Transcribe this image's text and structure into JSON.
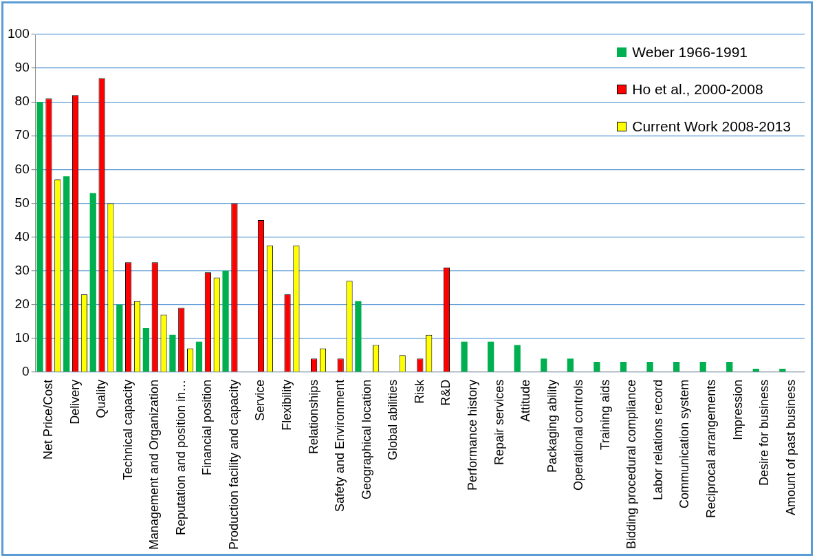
{
  "chart_data": {
    "type": "bar",
    "categories": [
      "Net Price/Cost",
      "Delivery",
      "Quality",
      "Technical capacity",
      "Management and Organization",
      "Reputation and position in…",
      "Financial position",
      "Production facility and capacity",
      "Service",
      "Flexibility",
      "Relationships",
      "Safety and Environment",
      "Geographical location",
      "Global abilities",
      "Risk",
      "R&D",
      "Performance history",
      "Repair services",
      "Attitude",
      "Packaging ability",
      "Operational controls",
      "Training aids",
      "Bidding procedural compliance",
      "Labor relations record",
      "Communication system",
      "Reciprocal arrangements",
      "Impression",
      "Desire for business",
      "Amount of past business"
    ],
    "series": [
      {
        "name": "Weber 1966-1991",
        "color": "#00b050",
        "values": [
          80,
          58,
          53,
          20,
          13,
          11,
          9,
          30,
          null,
          null,
          null,
          null,
          21,
          null,
          null,
          null,
          9,
          9,
          8,
          4,
          4,
          3,
          3,
          3,
          3,
          3,
          3,
          1,
          1
        ]
      },
      {
        "name": "Ho et al., 2000-2008",
        "color": "#ff0000",
        "values": [
          81,
          82,
          87,
          32.5,
          32.5,
          19,
          29.5,
          50,
          45,
          23,
          4,
          4,
          null,
          null,
          4,
          31,
          null,
          null,
          null,
          null,
          null,
          null,
          null,
          null,
          null,
          null,
          null,
          null,
          null
        ]
      },
      {
        "name": "Current Work 2008-2013",
        "color": "#ffff00",
        "values": [
          57,
          23,
          50,
          21,
          17,
          7,
          28,
          null,
          37.5,
          37.5,
          7,
          27,
          8,
          5,
          11,
          null,
          null,
          null,
          null,
          null,
          null,
          null,
          null,
          null,
          null,
          null,
          null,
          null,
          null
        ]
      }
    ],
    "ylim": [
      0,
      100
    ],
    "yticks": [
      0,
      10,
      20,
      30,
      40,
      50,
      60,
      70,
      80,
      90,
      100
    ],
    "grid": "y",
    "legend": "top right"
  }
}
